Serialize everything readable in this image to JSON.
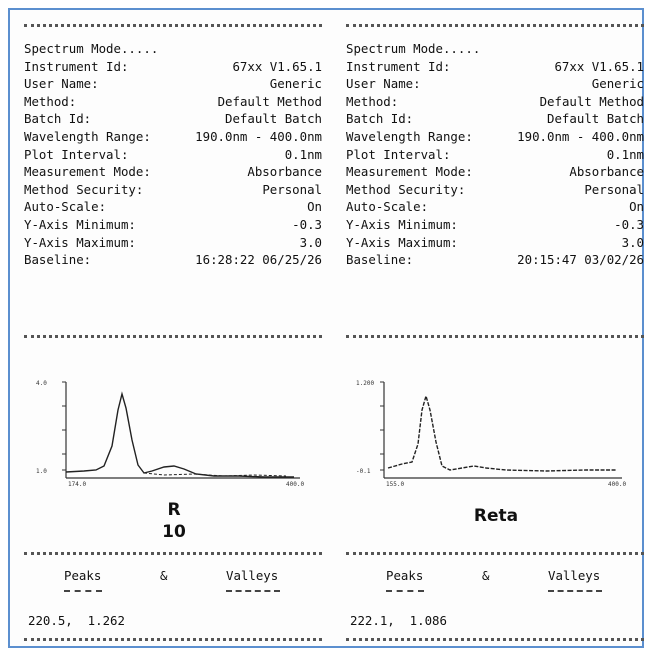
{
  "reports": [
    {
      "params": [
        {
          "label": "Spectrum Mode.....",
          "value": ""
        },
        {
          "label": "Instrument Id:",
          "value": "67xx V1.65.1"
        },
        {
          "label": "User Name:",
          "value": "Generic"
        },
        {
          "label": "Method:",
          "value": "Default Method"
        },
        {
          "label": "Batch Id:",
          "value": "Default Batch"
        },
        {
          "label": "Wavelength Range:",
          "value": "190.0nm - 400.0nm"
        },
        {
          "label": "Plot Interval:",
          "value": "0.1nm"
        },
        {
          "label": "Measurement Mode:",
          "value": "Absorbance"
        },
        {
          "label": "Method Security:",
          "value": "Personal"
        },
        {
          "label": "Auto-Scale:",
          "value": "On"
        },
        {
          "label": "Y-Axis Minimum:",
          "value": "-0.3"
        },
        {
          "label": "Y-Axis Maximum:",
          "value": "3.0"
        },
        {
          "label": "Baseline:",
          "value": "16:28:22 06/25/26"
        }
      ],
      "sample_label_line1": "R",
      "sample_label_line2": "10",
      "peaks_label": "Peaks",
      "amp_label": "&",
      "valleys_label": "Valleys",
      "peak_value": "220.5,  1.262"
    },
    {
      "params": [
        {
          "label": "Spectrum Mode.....",
          "value": ""
        },
        {
          "label": "Instrument Id:",
          "value": "67xx V1.65.1"
        },
        {
          "label": "User Name:",
          "value": "Generic"
        },
        {
          "label": "Method:",
          "value": "Default Method"
        },
        {
          "label": "Batch Id:",
          "value": "Default Batch"
        },
        {
          "label": "Wavelength Range:",
          "value": "190.0nm - 400.0nm"
        },
        {
          "label": "Plot Interval:",
          "value": "0.1nm"
        },
        {
          "label": "Measurement Mode:",
          "value": "Absorbance"
        },
        {
          "label": "Method Security:",
          "value": "Personal"
        },
        {
          "label": "Auto-Scale:",
          "value": "On"
        },
        {
          "label": "Y-Axis Minimum:",
          "value": "-0.3"
        },
        {
          "label": "Y-Axis Maximum:",
          "value": "3.0"
        },
        {
          "label": "Baseline:",
          "value": "20:15:47 03/02/26"
        }
      ],
      "sample_label_line1": "Reta",
      "sample_label_line2": "",
      "peaks_label": "Peaks",
      "amp_label": "&",
      "valleys_label": "Valleys",
      "peak_value": "222.1,  1.086"
    }
  ]
}
